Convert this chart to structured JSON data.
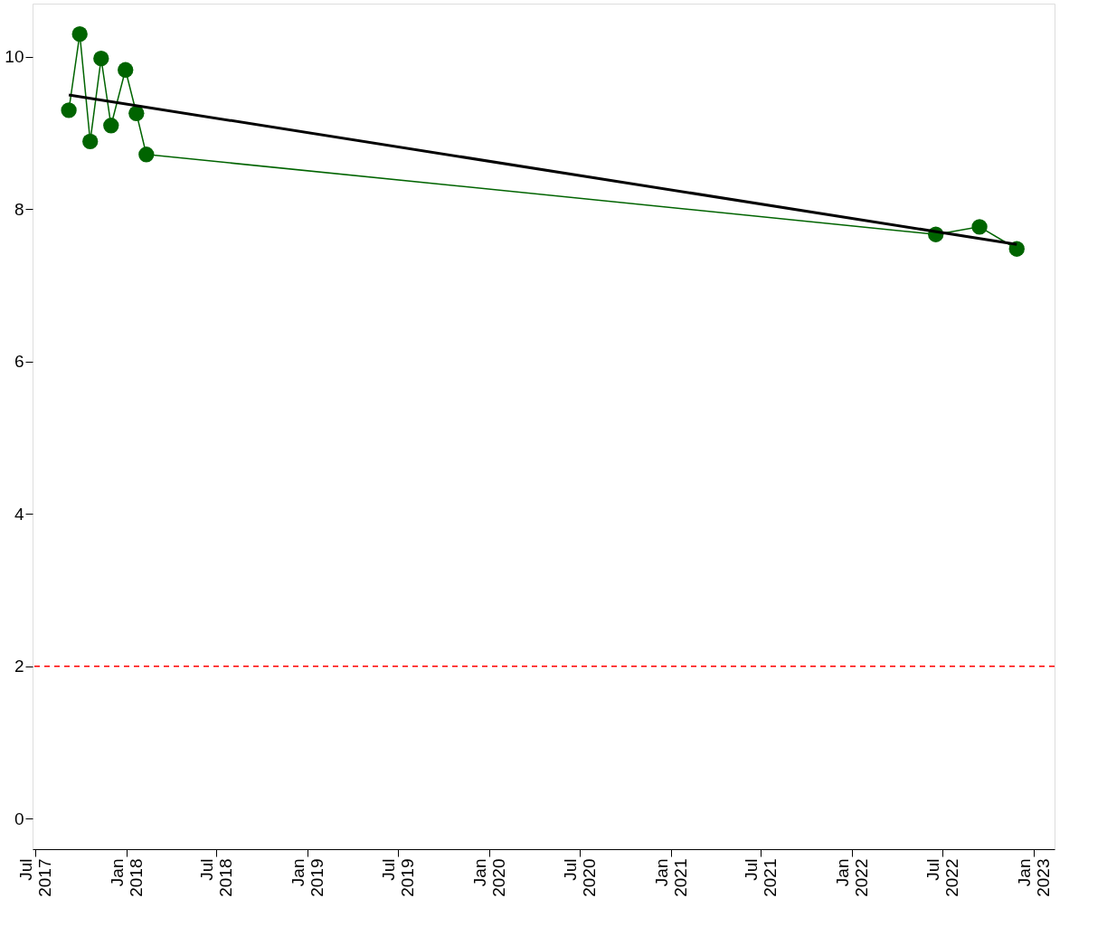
{
  "chart_data": {
    "type": "line",
    "series": [
      {
        "color": "#006400",
        "marker": "circle",
        "x": [
          "2017-09-07",
          "2017-09-29",
          "2017-10-20",
          "2017-11-11",
          "2017-12-01",
          "2017-12-30",
          "2018-01-21",
          "2018-02-10",
          "2022-06-18",
          "2022-09-14",
          "2022-11-28"
        ],
        "values": [
          9.3,
          10.3,
          8.89,
          9.98,
          9.1,
          9.83,
          9.26,
          8.72,
          7.67,
          7.77,
          7.48
        ]
      },
      {
        "color": "#000000",
        "marker": "none",
        "x": [
          "2017-09-07",
          "2022-11-28"
        ],
        "values": [
          9.5,
          7.54
        ]
      }
    ],
    "xlim": [
      "2017-06-26",
      "2023-02-12"
    ],
    "xticks": [
      {
        "value": "2017-07-01",
        "label": "Jul 2017"
      },
      {
        "value": "2018-01-01",
        "label": "Jan 2018"
      },
      {
        "value": "2018-07-01",
        "label": "Jul 2018"
      },
      {
        "value": "2019-01-01",
        "label": "Jan 2019"
      },
      {
        "value": "2019-07-01",
        "label": "Jul 2019"
      },
      {
        "value": "2020-01-01",
        "label": "Jan 2020"
      },
      {
        "value": "2020-07-01",
        "label": "Jul 2020"
      },
      {
        "value": "2021-01-01",
        "label": "Jan 2021"
      },
      {
        "value": "2021-07-01",
        "label": "Jul 2021"
      },
      {
        "value": "2022-01-01",
        "label": "Jan 2022"
      },
      {
        "value": "2022-07-01",
        "label": "Jul 2022"
      },
      {
        "value": "2023-01-01",
        "label": "Jan 2023"
      }
    ],
    "ylim": [
      -0.4,
      10.7
    ],
    "yticks": [
      0,
      2,
      4,
      6,
      8,
      10
    ],
    "ref_lines": [
      {
        "axis": "y",
        "value": 2,
        "color": "#ff0000",
        "line_style": "dashed"
      }
    ],
    "grid": false
  }
}
